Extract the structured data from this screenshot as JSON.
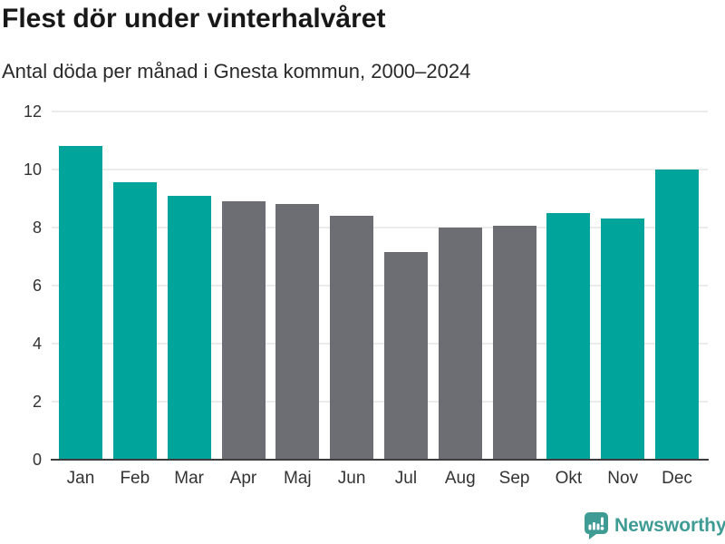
{
  "title": "Flest dör under vinterhalvåret",
  "subtitle": "Antal döda per månad i Gnesta kommun, 2000–2024",
  "chart_data": {
    "type": "bar",
    "categories": [
      "Jan",
      "Feb",
      "Mar",
      "Apr",
      "Maj",
      "Jun",
      "Jul",
      "Aug",
      "Sep",
      "Okt",
      "Nov",
      "Dec"
    ],
    "values": [
      10.8,
      9.55,
      9.1,
      8.9,
      8.8,
      8.4,
      7.15,
      8.0,
      8.05,
      8.5,
      8.3,
      10.0
    ],
    "bar_roles": [
      "highlight",
      "highlight",
      "highlight",
      "muted",
      "muted",
      "muted",
      "muted",
      "muted",
      "muted",
      "highlight",
      "highlight",
      "highlight"
    ],
    "title": "Flest dör under vinterhalvåret",
    "subtitle": "Antal döda per månad i Gnesta kommun, 2000–2024",
    "xlabel": "",
    "ylabel": "",
    "y_ticks": [
      0,
      2,
      4,
      6,
      8,
      10,
      12
    ],
    "ylim": [
      0,
      12
    ],
    "grid": "horizontal-only",
    "legend": "none",
    "colors": {
      "highlight": "#00a49b",
      "muted": "#6d6d74",
      "gridline": "#ebebeb",
      "baseline": "#3d3d3d",
      "axis_text": "#333333"
    }
  },
  "footer": {
    "brand": "Newsworthy",
    "logo_icon": "newsworthy-speech-bubble-bar-chart-icon",
    "brand_color": "#3f9c95"
  }
}
